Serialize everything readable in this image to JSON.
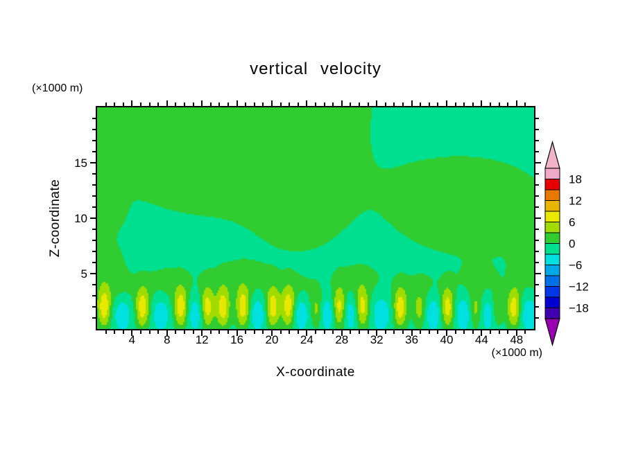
{
  "chart_data": {
    "type": "contour",
    "title": "vertical velocity",
    "xlabel": "X-coordinate",
    "ylabel": "Z-coordinate",
    "x_unit_label": "(×1000 m)",
    "z_unit_label": "(×1000 m)",
    "x_range": [
      0,
      50
    ],
    "z_range": [
      0,
      20
    ],
    "x_major_ticks": [
      4,
      8,
      12,
      16,
      20,
      24,
      28,
      32,
      36,
      40,
      44,
      48
    ],
    "x_minor_step": 1,
    "z_major_ticks": [
      5,
      10,
      15
    ],
    "z_minor_step": 1,
    "contour_interval": 3,
    "levels_min": -21,
    "band_colors_low_to_high": [
      "#4000b0",
      "#0000d0",
      "#0038e8",
      "#0070e8",
      "#00a8e8",
      "#00e0e0",
      "#00e090",
      "#30cc30",
      "#a0dc00",
      "#e8e800",
      "#e8b400",
      "#e87800",
      "#e80000",
      "#f0aac8"
    ],
    "colorbar_under_color": "#9800b0",
    "colorbar_over_color": "#f0b4c8",
    "colorbar_labels": [
      "18",
      "12",
      "6",
      "0",
      "−6",
      "−12",
      "−18"
    ],
    "field": {
      "background": -1.2,
      "gaussians": [
        {
          "x": 14,
          "z": 21,
          "sx": 12,
          "sz": 7.5,
          "a": 3.4
        },
        {
          "x": 23.5,
          "z": 12,
          "sx": 3.5,
          "sz": 3.5,
          "a": 2.0
        },
        {
          "x": 0,
          "z": 10.5,
          "sx": 1.8,
          "sz": 1.4,
          "a": 2.2
        },
        {
          "x": 0,
          "z": 5.5,
          "sx": 2.2,
          "sz": 1.8,
          "a": 2.4
        },
        {
          "x": 43,
          "z": 11,
          "sx": 6.5,
          "sz": 3.2,
          "a": 2.9
        },
        {
          "x": 50,
          "z": 5,
          "sx": 1.8,
          "sz": 1.6,
          "a": 2.2
        },
        {
          "x": 8,
          "z": 3.8,
          "sx": 2.2,
          "sz": 1.3,
          "a": 1.9
        },
        {
          "x": 16.5,
          "z": 4.2,
          "sx": 2.8,
          "sz": 1.4,
          "a": 1.9
        },
        {
          "x": 23,
          "z": 3.5,
          "sx": 1.6,
          "sz": 1.0,
          "a": 1.6
        },
        {
          "x": 30,
          "z": 4.3,
          "sx": 2.2,
          "sz": 1.2,
          "a": 1.8
        },
        {
          "x": 37,
          "z": 3.6,
          "sx": 1.8,
          "sz": 1.1,
          "a": 1.7
        },
        {
          "x": 43.5,
          "z": 4.1,
          "sx": 1.8,
          "sz": 1.2,
          "a": 1.8
        },
        {
          "x": 2.5,
          "z": 3.4,
          "sx": 1.4,
          "sz": 1.0,
          "a": 1.6
        },
        {
          "x": 0.8,
          "z": 1.9,
          "sx": 0.55,
          "sz": 1.3,
          "a": 8.8
        },
        {
          "x": 5.2,
          "z": 1.9,
          "sx": 0.55,
          "sz": 1.3,
          "a": 8.8
        },
        {
          "x": 9.6,
          "z": 1.9,
          "sx": 0.55,
          "sz": 1.3,
          "a": 8.8
        },
        {
          "x": 12.6,
          "z": 1.9,
          "sx": 0.55,
          "sz": 1.3,
          "a": 8.8
        },
        {
          "x": 14.4,
          "z": 1.9,
          "sx": 0.55,
          "sz": 1.3,
          "a": 8.8
        },
        {
          "x": 16.7,
          "z": 1.9,
          "sx": 0.55,
          "sz": 1.3,
          "a": 8.8
        },
        {
          "x": 20.1,
          "z": 1.9,
          "sx": 0.55,
          "sz": 1.3,
          "a": 8.8
        },
        {
          "x": 21.9,
          "z": 1.9,
          "sx": 0.55,
          "sz": 1.3,
          "a": 8.8
        },
        {
          "x": 27.7,
          "z": 1.9,
          "sx": 0.55,
          "sz": 1.3,
          "a": 8.8
        },
        {
          "x": 30.3,
          "z": 1.9,
          "sx": 0.55,
          "sz": 1.3,
          "a": 8.8
        },
        {
          "x": 34.7,
          "z": 1.9,
          "sx": 0.55,
          "sz": 1.3,
          "a": 8.8
        },
        {
          "x": 40.1,
          "z": 1.9,
          "sx": 0.55,
          "sz": 1.3,
          "a": 8.8
        },
        {
          "x": 47.7,
          "z": 1.9,
          "sx": 0.55,
          "sz": 1.3,
          "a": 8.8
        },
        {
          "x": 25.1,
          "z": 1.7,
          "sx": 0.5,
          "sz": 1.1,
          "a": 5.2
        },
        {
          "x": 36.9,
          "z": 1.7,
          "sx": 0.5,
          "sz": 1.1,
          "a": 5.2
        },
        {
          "x": 43.3,
          "z": 1.7,
          "sx": 0.5,
          "sz": 1.1,
          "a": 5.2
        },
        {
          "x": 45.7,
          "z": 1.7,
          "sx": 0.5,
          "sz": 1.1,
          "a": 5.2
        },
        {
          "x": 2.9,
          "z": 1.4,
          "sx": 0.7,
          "sz": 1.1,
          "a": -4.6
        },
        {
          "x": 7.3,
          "z": 1.4,
          "sx": 0.7,
          "sz": 1.1,
          "a": -4.6
        },
        {
          "x": 11.3,
          "z": 1.4,
          "sx": 0.7,
          "sz": 1.1,
          "a": -4.6
        },
        {
          "x": 18.4,
          "z": 1.4,
          "sx": 0.7,
          "sz": 1.1,
          "a": -4.6
        },
        {
          "x": 23.3,
          "z": 1.4,
          "sx": 0.7,
          "sz": 1.1,
          "a": -4.6
        },
        {
          "x": 26.4,
          "z": 1.4,
          "sx": 0.7,
          "sz": 1.1,
          "a": -4.6
        },
        {
          "x": 29.1,
          "z": 1.4,
          "sx": 0.7,
          "sz": 1.1,
          "a": -4.6
        },
        {
          "x": 32.5,
          "z": 1.4,
          "sx": 0.7,
          "sz": 1.1,
          "a": -4.6
        },
        {
          "x": 38.5,
          "z": 1.4,
          "sx": 0.7,
          "sz": 1.1,
          "a": -4.6
        },
        {
          "x": 41.9,
          "z": 1.4,
          "sx": 0.7,
          "sz": 1.1,
          "a": -4.6
        },
        {
          "x": 44.9,
          "z": 1.4,
          "sx": 0.7,
          "sz": 1.1,
          "a": -4.6
        },
        {
          "x": 49.4,
          "z": 1.4,
          "sx": 0.7,
          "sz": 1.1,
          "a": -4.6
        }
      ]
    }
  }
}
